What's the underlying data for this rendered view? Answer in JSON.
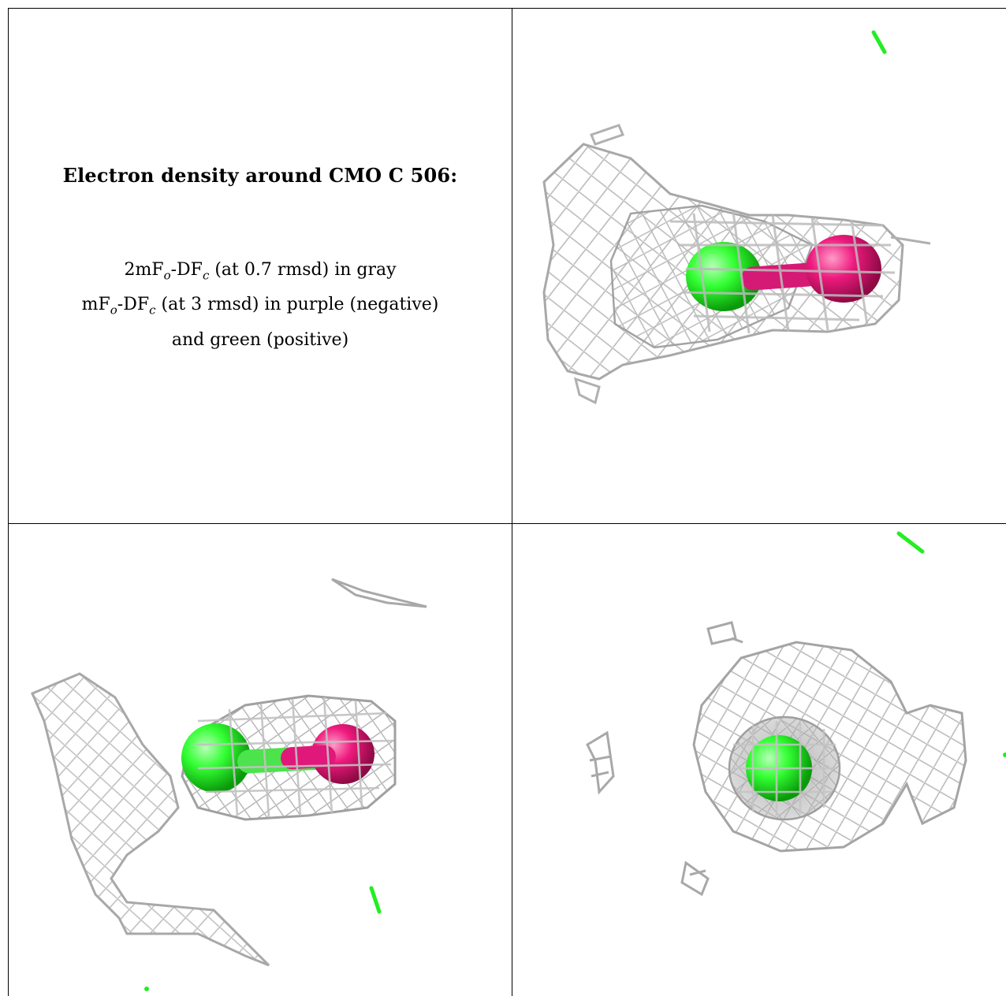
{
  "caption": {
    "title": "Electron density around CMO C 506:",
    "line1": {
      "pre": "2mF",
      "sub1": "o",
      "mid": "-DF",
      "sub2": "c",
      "post": " (at 0.7 rmsd) in gray"
    },
    "line2": {
      "pre": "mF",
      "sub1": "o",
      "mid": "-DF",
      "sub2": "c",
      "post": " (at 3 rmsd) in purple (negative)"
    },
    "line3": "and green (positive)"
  },
  "colors": {
    "mesh": "#b8b8b8",
    "mesh_dark": "#8a8a8a",
    "positive_green": "#22ee22",
    "negative_purple": "#e0187a",
    "border": "#000000"
  },
  "panels": [
    {
      "name": "view-top-right",
      "content": "2mFo-DFc mesh with green and purple density"
    },
    {
      "name": "view-bottom-left",
      "content": "2mFo-DFc mesh with green and purple density"
    },
    {
      "name": "view-bottom-right",
      "content": "2mFo-DFc mesh viewed down the ligand axis"
    }
  ]
}
